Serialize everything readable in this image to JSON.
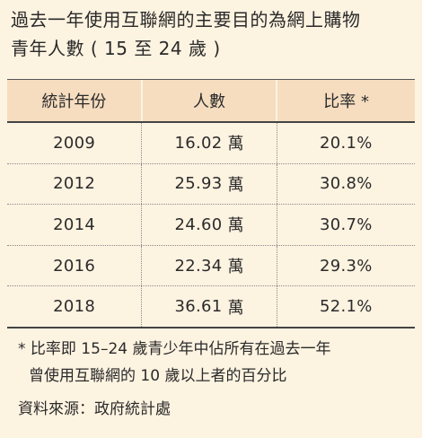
{
  "title": {
    "line1": "過去一年使用互聯網的主要目的為網上購物",
    "line2": "青年人數 ( 15 至 24 歲 )"
  },
  "table": {
    "headers": [
      "統計年份",
      "人數",
      "比率 *"
    ],
    "unit": "萬",
    "rows": [
      {
        "year": "2009",
        "count": "16.02",
        "ratio": "20.1%"
      },
      {
        "year": "2012",
        "count": "25.93",
        "ratio": "30.8%"
      },
      {
        "year": "2014",
        "count": "24.60",
        "ratio": "30.7%"
      },
      {
        "year": "2016",
        "count": "22.34",
        "ratio": "29.3%"
      },
      {
        "year": "2018",
        "count": "36.61",
        "ratio": "52.1%"
      }
    ]
  },
  "note": {
    "line1": "* 比率即 15–24 歲青少年中佔所有在過去一年",
    "line2": "曾使用互聯網的 10 歲以上者的百分比"
  },
  "source": "資料來源：政府統計處"
}
